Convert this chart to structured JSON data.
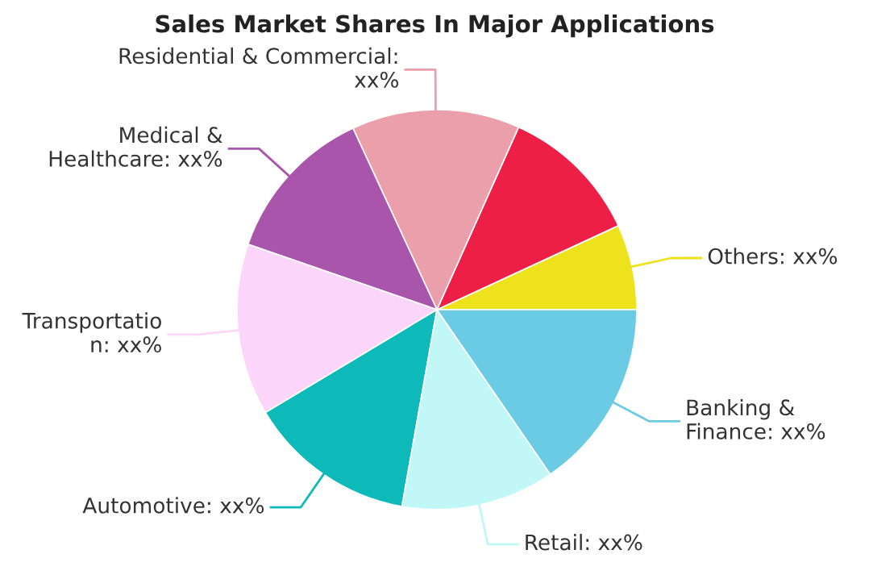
{
  "chart_data": {
    "type": "pie",
    "title": "Sales Market Shares In Major Applications",
    "categories": [
      "Others: xx%",
      null,
      "Residential & Commercial:\nxx%",
      "Medical &\nHealthcare: xx%",
      "Transportatio\nn: xx%",
      "Automotive: xx%",
      "Retail: xx%",
      "Banking &\nFinance: xx%"
    ],
    "values": [
      6.9,
      11.4,
      13.6,
      12.8,
      13.9,
      13.6,
      12.4,
      15.4
    ],
    "colors": [
      "#ede21c",
      "#ee1f47",
      "#eb9faa",
      "#a855ab",
      "#fcd5fa",
      "#0dbab9",
      "#c2f7f8",
      "#6ccbe4"
    ],
    "legend": false
  }
}
